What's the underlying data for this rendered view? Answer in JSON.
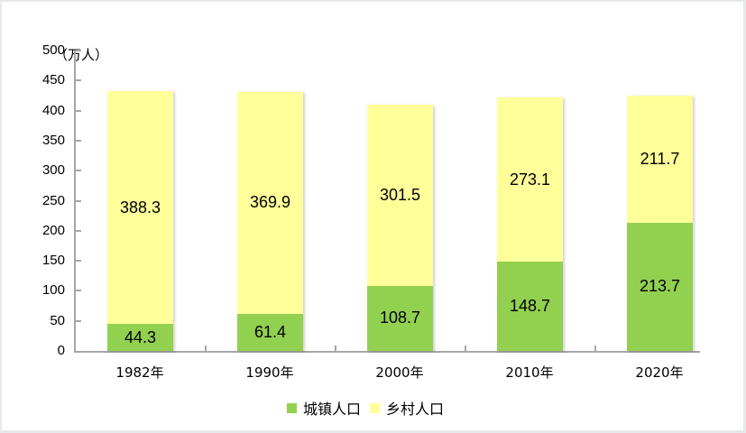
{
  "chart_data": {
    "type": "bar",
    "stacked": true,
    "title": "",
    "xlabel": "",
    "ylabel": "（万人）",
    "ylim": [
      0,
      500
    ],
    "yticks": [
      0,
      50,
      100,
      150,
      200,
      250,
      300,
      350,
      400,
      450,
      500
    ],
    "categories": [
      "1982年",
      "1990年",
      "2000年",
      "2010年",
      "2020年"
    ],
    "series": [
      {
        "name": "城镇人口",
        "color": "#92d050",
        "values": [
          44.3,
          61.4,
          108.7,
          148.7,
          213.7
        ]
      },
      {
        "name": "乡村人口",
        "color": "#ffff99",
        "values": [
          388.3,
          369.9,
          301.5,
          273.1,
          211.7
        ]
      }
    ],
    "legend_position": "bottom",
    "grid": false
  },
  "unit_label": "（万人）",
  "yticks": [
    "0",
    "50",
    "100",
    "150",
    "200",
    "250",
    "300",
    "350",
    "400",
    "450",
    "500"
  ],
  "categories": [
    "1982年",
    "1990年",
    "2000年",
    "2010年",
    "2020年"
  ],
  "urban": {
    "label": "城镇人口",
    "values": [
      "44.3",
      "61.4",
      "108.7",
      "148.7",
      "213.7"
    ]
  },
  "rural": {
    "label": "乡村人口",
    "values": [
      "388.3",
      "369.9",
      "301.5",
      "273.1",
      "211.7"
    ]
  }
}
